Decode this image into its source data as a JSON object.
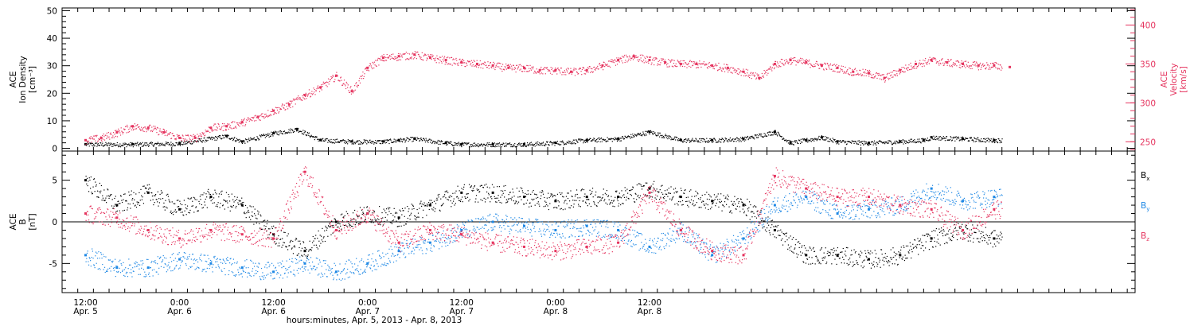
{
  "chart_data": [
    {
      "type": "scatter",
      "panel": "top",
      "ylabel_left": [
        "ACE",
        "Ion Density",
        "[cm⁻³]"
      ],
      "ylabel_right": [
        "ACE",
        "Velocity",
        "[km/s]"
      ],
      "ylim_left": [
        -1,
        51
      ],
      "yticks_left": [
        0,
        10,
        20,
        30,
        40,
        50
      ],
      "ylim_right": [
        238,
        422
      ],
      "yticks_right": [
        250,
        300,
        350,
        400
      ],
      "series": [
        {
          "axis": "left",
          "color": "#000000",
          "x": [
            0,
            6,
            12,
            18,
            20,
            24,
            27,
            30,
            34,
            38,
            40,
            42,
            46,
            48,
            52,
            56,
            60,
            64,
            68,
            72,
            76,
            80,
            84,
            88,
            90,
            92,
            94,
            96,
            100,
            104,
            107,
            108,
            112,
            116
          ],
          "values": [
            1.5,
            1.5,
            1.8,
            4.5,
            2.5,
            5.5,
            7,
            3,
            2.5,
            2.5,
            3,
            3.5,
            2,
            1.5,
            1.5,
            1.5,
            2,
            3,
            3.5,
            6,
            3,
            3,
            3.5,
            6,
            2,
            3,
            4,
            2.5,
            2,
            2.5,
            3,
            4,
            3.5,
            3
          ]
        },
        {
          "axis": "right",
          "color": "#e5335e",
          "x": [
            0,
            2,
            4,
            6,
            8,
            10,
            12,
            14,
            16,
            18,
            20,
            22,
            24,
            26,
            28,
            30,
            32,
            34,
            36,
            38,
            40,
            42,
            44,
            46,
            48,
            50,
            52,
            54,
            56,
            58,
            60,
            62,
            64,
            66,
            68,
            70,
            72,
            74,
            76,
            78,
            80,
            82,
            84,
            86,
            88,
            90,
            92,
            94,
            96,
            98,
            100,
            102,
            104,
            106,
            108,
            110,
            112,
            114,
            116,
            118
          ],
          "values": [
            252,
            255,
            262,
            270,
            268,
            262,
            255,
            255,
            268,
            270,
            275,
            282,
            290,
            298,
            310,
            320,
            335,
            315,
            345,
            358,
            360,
            362,
            358,
            355,
            352,
            350,
            348,
            345,
            345,
            342,
            342,
            340,
            342,
            348,
            355,
            360,
            355,
            352,
            350,
            350,
            348,
            345,
            340,
            332,
            350,
            355,
            352,
            348,
            345,
            340,
            338,
            332,
            342,
            350,
            355,
            352,
            350,
            348,
            348,
            346
          ]
        }
      ]
    },
    {
      "type": "scatter",
      "panel": "bottom",
      "ylabel_left": [
        "ACE",
        "B",
        "[nT]"
      ],
      "ylim": [
        -8.5,
        8.5
      ],
      "yticks": [
        -5,
        0,
        5
      ],
      "legend": [
        "Bx",
        "By",
        "Bz"
      ],
      "series": [
        {
          "name": "Bx",
          "color": "#000000",
          "x": [
            0,
            4,
            8,
            12,
            16,
            20,
            24,
            28,
            32,
            36,
            40,
            44,
            48,
            52,
            56,
            60,
            64,
            68,
            72,
            76,
            80,
            84,
            88,
            92,
            96,
            100,
            104,
            108,
            112,
            116
          ],
          "values": [
            5,
            2,
            3.5,
            1.5,
            3,
            2,
            -1.5,
            -3.5,
            0,
            1,
            0.5,
            2,
            3.5,
            3.5,
            3,
            2.5,
            3,
            3,
            4,
            3,
            2.5,
            2,
            -1,
            -4,
            -4,
            -4.5,
            -4,
            -2,
            -1,
            -2
          ]
        },
        {
          "name": "By",
          "color": "#1e88e5",
          "x": [
            0,
            4,
            8,
            12,
            16,
            20,
            24,
            28,
            32,
            36,
            40,
            44,
            48,
            52,
            56,
            60,
            64,
            68,
            72,
            76,
            80,
            84,
            88,
            92,
            96,
            100,
            104,
            108,
            112,
            116
          ],
          "values": [
            -4,
            -5.5,
            -5.5,
            -4.5,
            -5,
            -5.5,
            -6,
            -5,
            -6,
            -5,
            -3.5,
            -2.5,
            -1,
            0,
            -0.5,
            -1,
            -0.5,
            -1,
            -3,
            -1,
            -4,
            -2,
            2,
            3,
            1,
            1.5,
            2,
            4,
            2.5,
            3
          ]
        },
        {
          "name": "Bz",
          "color": "#e5335e",
          "x": [
            0,
            4,
            8,
            12,
            16,
            20,
            24,
            28,
            32,
            36,
            40,
            44,
            48,
            52,
            56,
            60,
            64,
            68,
            72,
            76,
            80,
            84,
            88,
            92,
            96,
            100,
            104,
            108,
            112,
            116
          ],
          "values": [
            1,
            0.5,
            -1,
            -2,
            -1,
            -1.5,
            -2,
            6,
            -1,
            1,
            -2.5,
            -1,
            -1.5,
            -2.5,
            -3,
            -3.5,
            -3,
            -2.5,
            3.5,
            -1,
            -3.5,
            -4,
            5.5,
            4,
            3,
            3,
            2,
            1.5,
            -1,
            1.5
          ]
        }
      ]
    }
  ],
  "xaxis": {
    "range_hours": [
      -3,
      134
    ],
    "ticks": [
      {
        "h": 0,
        "time": "12:00",
        "date": "Apr. 5"
      },
      {
        "h": 12,
        "time": "0:00",
        "date": "Apr. 6"
      },
      {
        "h": 24,
        "time": "12:00",
        "date": "Apr. 6"
      },
      {
        "h": 36,
        "time": "0:00",
        "date": "Apr. 7"
      },
      {
        "h": 48,
        "time": "12:00",
        "date": "Apr. 7"
      },
      {
        "h": 60,
        "time": "0:00",
        "date": "Apr. 8"
      },
      {
        "h": 72,
        "time": "12:00",
        "date": "Apr. 8"
      }
    ],
    "xlabel": "hours:minutes, Apr. 5, 2013 - Apr. 8, 2013"
  },
  "legend_labels": {
    "bx": {
      "main": "B",
      "sub": "x"
    },
    "by": {
      "main": "B",
      "sub": "y"
    },
    "bz": {
      "main": "B",
      "sub": "z"
    }
  }
}
